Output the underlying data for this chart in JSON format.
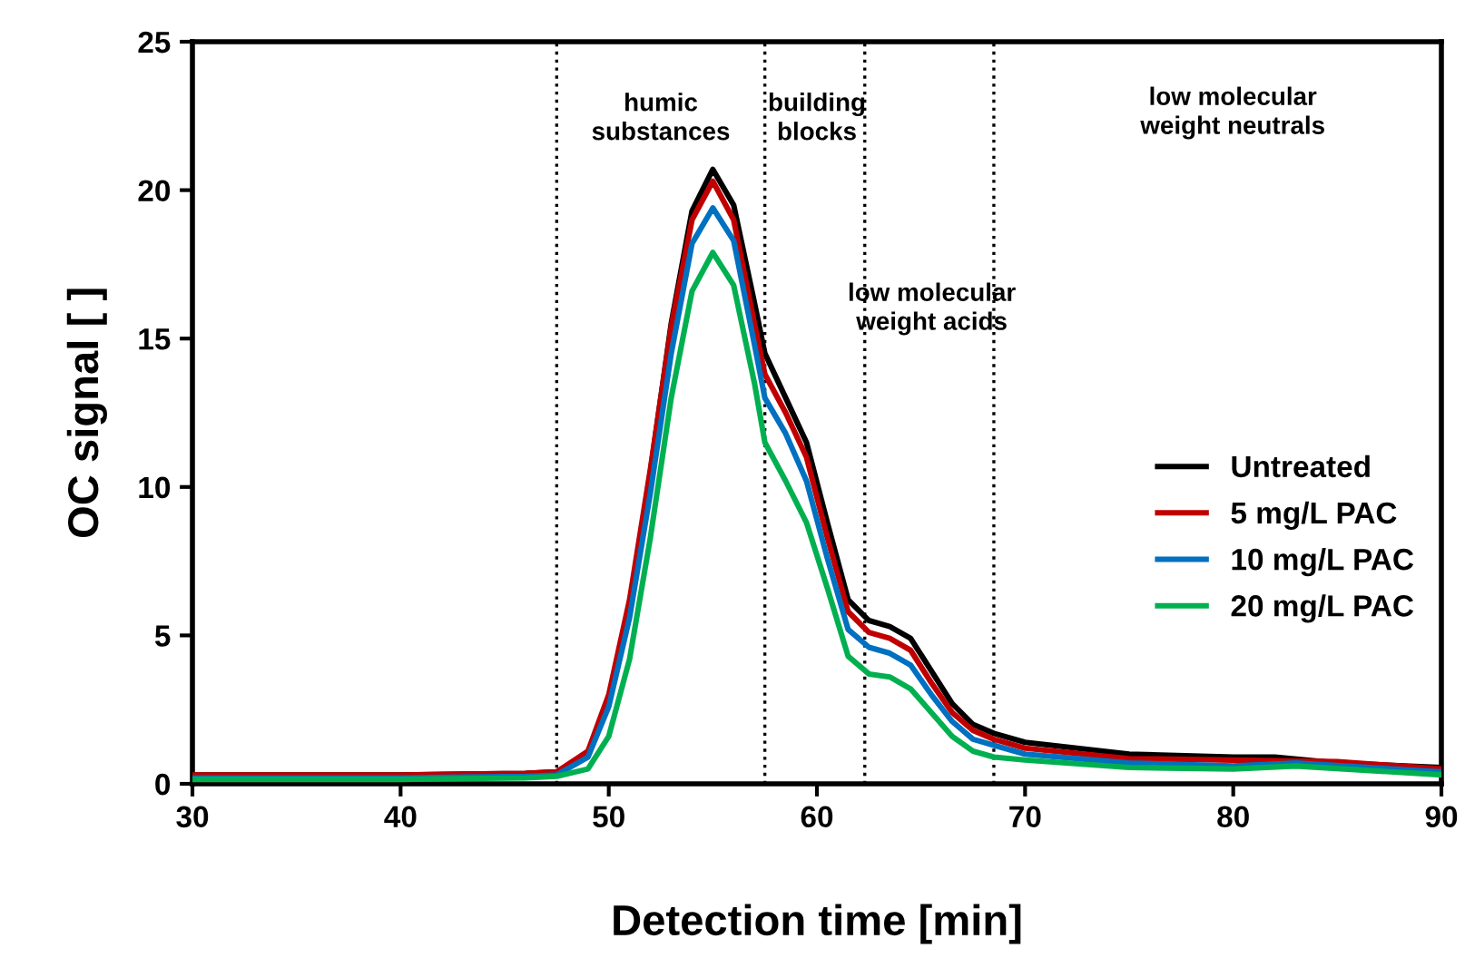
{
  "chart_data": {
    "type": "line",
    "xlabel": "Detection time [min]",
    "ylabel": "OC signal [ ]",
    "xlim": [
      30,
      90
    ],
    "xticks": [
      30,
      40,
      50,
      60,
      70,
      80,
      90
    ],
    "ylim": [
      0,
      25
    ],
    "yticks": [
      0,
      5,
      10,
      15,
      20,
      25
    ],
    "grid": false,
    "legend": "right",
    "marker": "none",
    "line_style": "solid",
    "series": [
      {
        "name": "Untreated",
        "color": "#000000",
        "x": [
          30,
          40,
          46,
          47.5,
          49,
          50,
          51,
          52,
          53,
          54,
          55,
          56,
          57,
          57.5,
          58.5,
          59.5,
          60.5,
          61.5,
          62.5,
          63.5,
          64.5,
          65.5,
          66.5,
          67.5,
          68.5,
          70,
          75,
          80,
          82,
          85,
          90
        ],
        "values": [
          0.3,
          0.3,
          0.35,
          0.4,
          1.0,
          2.8,
          6.0,
          10.5,
          15.5,
          19.3,
          20.7,
          19.5,
          16.2,
          14.5,
          13.0,
          11.5,
          8.8,
          6.2,
          5.5,
          5.3,
          4.9,
          3.8,
          2.7,
          2.0,
          1.7,
          1.4,
          1.0,
          0.9,
          0.9,
          0.7,
          0.55
        ]
      },
      {
        "name": "5 mg/L PAC",
        "color": "#c00000",
        "x": [
          30,
          40,
          46,
          47.5,
          49,
          50,
          51,
          52,
          53,
          54,
          55,
          56,
          57,
          57.5,
          58.5,
          59.5,
          60.5,
          61.5,
          62.5,
          63.5,
          64.5,
          65.5,
          66.5,
          67.5,
          68.5,
          70,
          75,
          80,
          85,
          90
        ],
        "values": [
          0.3,
          0.3,
          0.35,
          0.4,
          1.1,
          3.0,
          6.2,
          10.6,
          15.4,
          19.0,
          20.3,
          19.0,
          15.5,
          13.8,
          12.5,
          11.0,
          8.3,
          5.8,
          5.1,
          4.9,
          4.5,
          3.4,
          2.4,
          1.8,
          1.5,
          1.2,
          0.85,
          0.8,
          0.75,
          0.5
        ]
      },
      {
        "name": "10 mg/L PAC",
        "color": "#0070c0",
        "x": [
          30,
          40,
          46,
          47.5,
          49,
          50,
          51,
          52,
          53,
          54,
          55,
          56,
          57,
          57.5,
          58.5,
          59.5,
          60.5,
          61.5,
          62.5,
          63.5,
          64.5,
          65.5,
          66.5,
          67.5,
          68.5,
          70,
          75,
          80,
          83,
          90
        ],
        "values": [
          0.2,
          0.2,
          0.25,
          0.3,
          0.9,
          2.6,
          5.6,
          9.8,
          14.5,
          18.2,
          19.4,
          18.3,
          14.8,
          13.0,
          11.8,
          10.2,
          7.6,
          5.2,
          4.6,
          4.4,
          4.0,
          3.0,
          2.1,
          1.5,
          1.3,
          1.0,
          0.7,
          0.6,
          0.7,
          0.4
        ]
      },
      {
        "name": "20 mg/L PAC",
        "color": "#00b050",
        "x": [
          30,
          40,
          46,
          47.5,
          49,
          50,
          51,
          52,
          53,
          54,
          55,
          56,
          57,
          57.5,
          58.5,
          59.5,
          60.5,
          61.5,
          62.5,
          63.5,
          64.5,
          65.5,
          66.5,
          67.5,
          68.5,
          70,
          75,
          80,
          83,
          90
        ],
        "values": [
          0.15,
          0.15,
          0.2,
          0.25,
          0.5,
          1.6,
          4.2,
          8.3,
          13.0,
          16.6,
          17.9,
          16.8,
          13.5,
          11.5,
          10.2,
          8.8,
          6.6,
          4.3,
          3.7,
          3.6,
          3.2,
          2.4,
          1.6,
          1.1,
          0.9,
          0.8,
          0.55,
          0.5,
          0.6,
          0.3
        ]
      }
    ],
    "ref_lines": [
      {
        "axis": "x",
        "value": 47.5,
        "label": null,
        "color": "#000000",
        "line_style": "dotted"
      },
      {
        "axis": "x",
        "value": 57.5,
        "label": null,
        "color": "#000000",
        "line_style": "dotted"
      },
      {
        "axis": "x",
        "value": 62.3,
        "label": null,
        "color": "#000000",
        "line_style": "dotted"
      },
      {
        "axis": "x",
        "value": 68.5,
        "label": null,
        "color": "#000000",
        "line_style": "dotted"
      }
    ],
    "annotations": [
      "humic\nsubstances",
      "building\nblocks",
      "low molecular\nweight acids",
      "low molecular\nweight neutrals"
    ]
  }
}
